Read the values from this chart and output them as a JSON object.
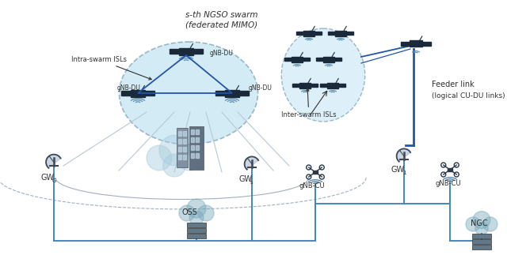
{
  "bg_color": "#ffffff",
  "blue_line": "#2255aa",
  "sat_color": "#1a2a3a",
  "dish_color": "#404858",
  "drone_color": "#2a3848",
  "server_color": "#5a6878",
  "cloud_color": "#90b8d0",
  "building_color": "#708090",
  "beam_color": "#b8c8d8",
  "arc_color": "#a0b0c0",
  "ground_line_color": "#4488bb",
  "swarm1_fill": "#cce8f4",
  "swarm1_edge": "#8aacbe",
  "swarm2_fill": "#d8eef8",
  "swarm2_edge": "#8aacbe",
  "text_color": "#303030",
  "title1": "s-th NGSO swarm",
  "title2": "(federated MIMO)",
  "label_intra": "Intra-swarm ISLs",
  "label_inter": "Inter-swarm ISLs",
  "label_feeder": "Feeder link",
  "label_feeder2": "(logical CU-DU links)",
  "label_oss": "OSS",
  "label_ngc": "NGC"
}
